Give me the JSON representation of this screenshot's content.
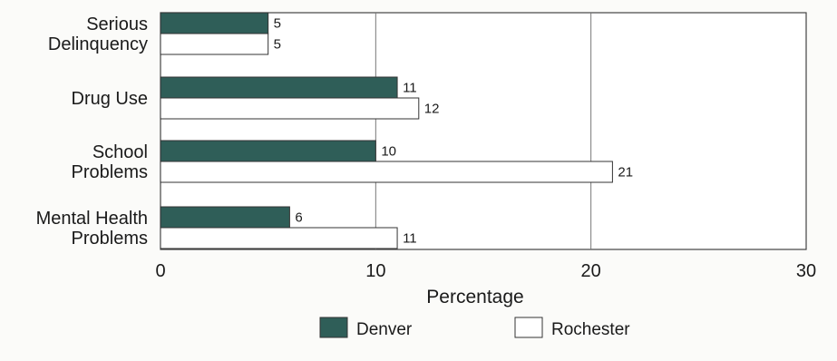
{
  "chart_data": {
    "type": "bar",
    "orientation": "horizontal",
    "categories": [
      [
        "Serious",
        "Delinquency"
      ],
      [
        "Drug Use"
      ],
      [
        "School",
        "Problems"
      ],
      [
        "Mental Health",
        "Problems"
      ]
    ],
    "series": [
      {
        "name": "Denver",
        "values": [
          5,
          11,
          10,
          6
        ],
        "color": "#2f5e58"
      },
      {
        "name": "Rochester",
        "values": [
          5,
          12,
          21,
          11
        ],
        "color": "#ffffff"
      }
    ],
    "xlabel": "Percentage",
    "xlim": [
      0,
      30
    ],
    "xticks": [
      0,
      10,
      20,
      30
    ],
    "grid": true,
    "legend_position": "bottom"
  }
}
